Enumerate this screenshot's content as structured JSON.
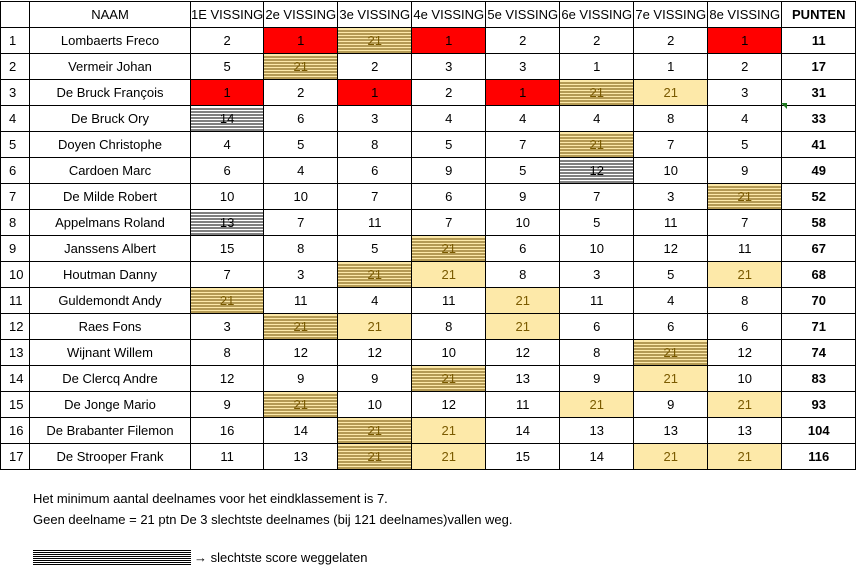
{
  "headers": [
    "",
    "NAAM",
    "1E VISSING",
    "2e VISSING",
    "3e VISSING",
    "4e VISSING",
    "5e VISSING",
    "6e VISSING",
    "7e VISSING",
    "8e VISSING",
    "PUNTEN"
  ],
  "rows": [
    {
      "rank": "1",
      "name": "Lombaerts Freco",
      "scores": [
        "2",
        "1",
        "21",
        "1",
        "2",
        "2",
        "2",
        "1"
      ],
      "styles": [
        "",
        "red",
        "strikey",
        "red",
        "",
        "",
        "",
        "red"
      ],
      "total": "11"
    },
    {
      "rank": "2",
      "name": "Vermeir Johan",
      "scores": [
        "5",
        "21",
        "2",
        "3",
        "3",
        "1",
        "1",
        "2"
      ],
      "styles": [
        "",
        "strikey",
        "",
        "",
        "",
        "",
        "",
        ""
      ],
      "total": "17"
    },
    {
      "rank": "3",
      "name": "De Bruck François",
      "scores": [
        "1",
        "2",
        "1",
        "2",
        "1",
        "21",
        "21",
        "3"
      ],
      "styles": [
        "red",
        "",
        "red",
        "",
        "red",
        "strikey",
        "yel",
        ""
      ],
      "total": "31"
    },
    {
      "rank": "4",
      "name": "De Bruck Ory",
      "scores": [
        "14",
        "6",
        "3",
        "4",
        "4",
        "4",
        "8",
        "4"
      ],
      "styles": [
        "strike",
        "",
        "",
        "",
        "",
        "",
        "",
        ""
      ],
      "total": "33"
    },
    {
      "rank": "5",
      "name": "Doyen Christophe",
      "scores": [
        "4",
        "5",
        "8",
        "5",
        "7",
        "21",
        "7",
        "5"
      ],
      "styles": [
        "",
        "",
        "",
        "",
        "",
        "strikey",
        "",
        ""
      ],
      "total": "41"
    },
    {
      "rank": "6",
      "name": "Cardoen Marc",
      "scores": [
        "6",
        "4",
        "6",
        "9",
        "5",
        "12",
        "10",
        "9"
      ],
      "styles": [
        "",
        "",
        "",
        "",
        "",
        "strike",
        "",
        ""
      ],
      "total": "49"
    },
    {
      "rank": "7",
      "name": "De Milde Robert",
      "scores": [
        "10",
        "10",
        "7",
        "6",
        "9",
        "7",
        "3",
        "21"
      ],
      "styles": [
        "",
        "",
        "",
        "",
        "",
        "",
        "",
        "strikey"
      ],
      "total": "52"
    },
    {
      "rank": "8",
      "name": "Appelmans Roland",
      "scores": [
        "13",
        "7",
        "11",
        "7",
        "10",
        "5",
        "11",
        "7"
      ],
      "styles": [
        "strike",
        "",
        "",
        "",
        "",
        "",
        "",
        ""
      ],
      "total": "58"
    },
    {
      "rank": "9",
      "name": "Janssens Albert",
      "scores": [
        "15",
        "8",
        "5",
        "21",
        "6",
        "10",
        "12",
        "11"
      ],
      "styles": [
        "",
        "",
        "",
        "strikey",
        "",
        "",
        "",
        ""
      ],
      "total": "67"
    },
    {
      "rank": "10",
      "name": "Houtman Danny",
      "scores": [
        "7",
        "3",
        "21",
        "21",
        "8",
        "3",
        "5",
        "21"
      ],
      "styles": [
        "",
        "",
        "strikey",
        "yel",
        "",
        "",
        "",
        "yel"
      ],
      "total": "68"
    },
    {
      "rank": "11",
      "name": "Guldemondt Andy",
      "scores": [
        "21",
        "11",
        "4",
        "11",
        "21",
        "11",
        "4",
        "8"
      ],
      "styles": [
        "strikey",
        "",
        "",
        "",
        "yel",
        "",
        "",
        ""
      ],
      "total": "70"
    },
    {
      "rank": "12",
      "name": "Raes Fons",
      "scores": [
        "3",
        "21",
        "21",
        "8",
        "21",
        "6",
        "6",
        "6"
      ],
      "styles": [
        "",
        "strikey",
        "yel",
        "",
        "yel",
        "",
        "",
        ""
      ],
      "total": "71"
    },
    {
      "rank": "13",
      "name": "Wijnant Willem",
      "scores": [
        "8",
        "12",
        "12",
        "10",
        "12",
        "8",
        "21",
        "12"
      ],
      "styles": [
        "",
        "",
        "",
        "",
        "",
        "",
        "strikey",
        ""
      ],
      "total": "74"
    },
    {
      "rank": "14",
      "name": "De Clercq Andre",
      "scores": [
        "12",
        "9",
        "9",
        "21",
        "13",
        "9",
        "21",
        "10"
      ],
      "styles": [
        "",
        "",
        "",
        "strikey",
        "",
        "",
        "yel",
        ""
      ],
      "total": "83"
    },
    {
      "rank": "15",
      "name": "De Jonge Mario",
      "scores": [
        "9",
        "21",
        "10",
        "12",
        "11",
        "21",
        "9",
        "21"
      ],
      "styles": [
        "",
        "strikey",
        "",
        "",
        "",
        "yel",
        "",
        "yel"
      ],
      "total": "93"
    },
    {
      "rank": "16",
      "name": "De Brabanter Filemon",
      "scores": [
        "16",
        "14",
        "21",
        "21",
        "14",
        "13",
        "13",
        "13"
      ],
      "styles": [
        "",
        "",
        "strikey",
        "yel",
        "",
        "",
        "",
        ""
      ],
      "total": "104"
    },
    {
      "rank": "17",
      "name": "De Strooper Frank",
      "scores": [
        "11",
        "13",
        "21",
        "21",
        "15",
        "14",
        "21",
        "21"
      ],
      "styles": [
        "",
        "",
        "strikey",
        "yel",
        "",
        "",
        "yel",
        "yel"
      ],
      "total": "116"
    }
  ],
  "notes": {
    "line1": "Het minimum aantal deelnames voor het eindklassement is 7.",
    "line2": "Geen deelname = 21 ptn    De 3 slechtste deelnames (bij 121 deelnames)vallen weg."
  },
  "legend": {
    "text": "→ slechtste score weggelaten"
  },
  "colors": {
    "best_score": "#ff0000",
    "absent_score": "#fde9a9"
  }
}
